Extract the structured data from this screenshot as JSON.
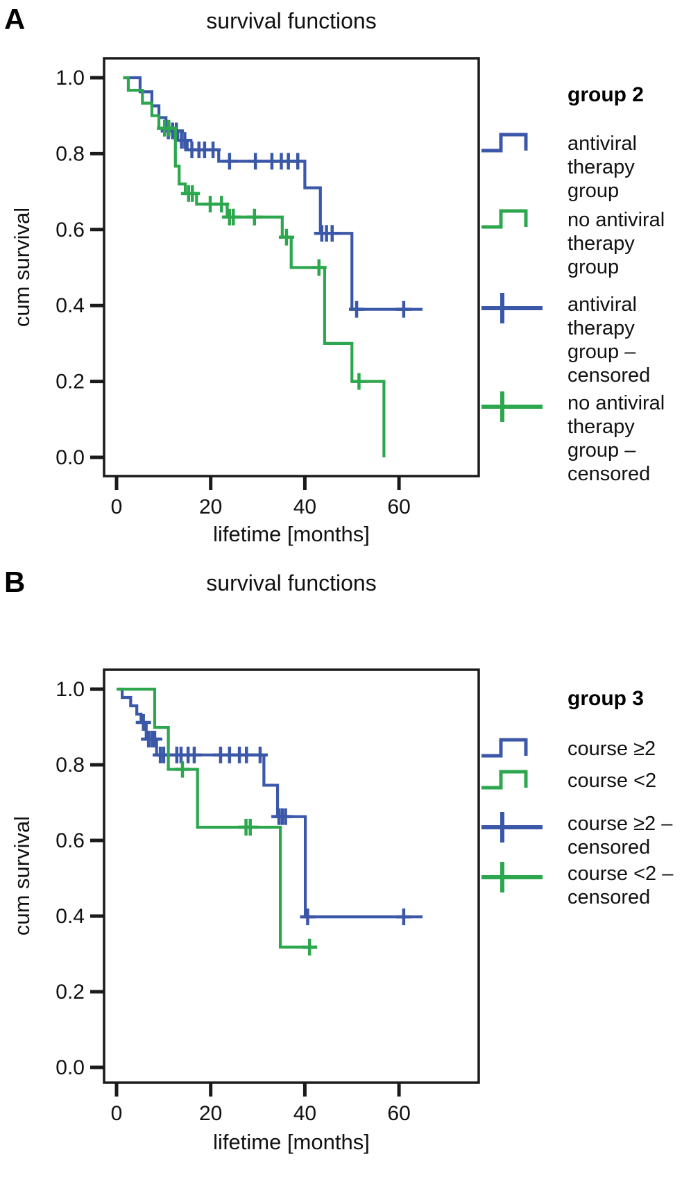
{
  "figure": {
    "background": "#ffffff",
    "text_color": "#111111",
    "axis_color": "#1a1a1a"
  },
  "chart_data": [
    {
      "type": "line",
      "subtype": "kaplan-meier-step",
      "panel_label": "A",
      "title": "survival functions",
      "xlabel": "lifetime [months]",
      "ylabel": "cum survival",
      "xlim": [
        0,
        77
      ],
      "ylim": [
        0,
        1.05
      ],
      "grid": "off",
      "legend_position": "right",
      "legend_title": "group 2",
      "xtick_values": [
        0,
        20,
        40,
        60
      ],
      "xtick_labels": [
        "0",
        "20",
        "40",
        "60"
      ],
      "ytick_values": [
        1.0,
        0.8,
        0.6,
        0.4,
        0.2,
        0.0
      ],
      "ytick_labels": [
        "1.0",
        "0.8",
        "0.6",
        "0.4",
        "0.2",
        "0.0"
      ],
      "series": [
        {
          "name": "antiviral therapy group",
          "censored_name": "antiviral therapy group – censored",
          "color": "#3b57a8",
          "steps": [
            [
              1.4,
              1.0
            ],
            [
              5,
              0.963
            ],
            [
              7.5,
              0.926
            ],
            [
              9,
              0.895
            ],
            [
              10.5,
              0.86
            ],
            [
              13,
              0.835
            ],
            [
              15,
              0.81
            ],
            [
              21.7,
              0.78
            ],
            [
              40,
              0.71
            ],
            [
              43.3,
              0.59
            ],
            [
              50,
              0.39
            ]
          ],
          "end": 65,
          "censored": [
            [
              11,
              0.86
            ],
            [
              11.9,
              0.86
            ],
            [
              12.7,
              0.86
            ],
            [
              13.8,
              0.835
            ],
            [
              14.5,
              0.835
            ],
            [
              16,
              0.81
            ],
            [
              17.5,
              0.81
            ],
            [
              18.7,
              0.81
            ],
            [
              20.5,
              0.81
            ],
            [
              24,
              0.78
            ],
            [
              29.5,
              0.78
            ],
            [
              33,
              0.78
            ],
            [
              35,
              0.78
            ],
            [
              36.5,
              0.78
            ],
            [
              38.5,
              0.78
            ],
            [
              43.6,
              0.59
            ],
            [
              44.6,
              0.59
            ],
            [
              45.8,
              0.59
            ],
            [
              51,
              0.39
            ],
            [
              61,
              0.39
            ]
          ]
        },
        {
          "name": "no antiviral therapy group",
          "censored_name": "no antiviral therapy group – censored",
          "color": "#2da74e",
          "steps": [
            [
              1.4,
              1.0
            ],
            [
              2.5,
              0.967
            ],
            [
              5.5,
              0.933
            ],
            [
              7.5,
              0.9
            ],
            [
              9,
              0.867
            ],
            [
              12.5,
              0.767
            ],
            [
              13.3,
              0.72
            ],
            [
              14.6,
              0.695
            ],
            [
              17,
              0.667
            ],
            [
              23.5,
              0.633
            ],
            [
              35.2,
              0.58
            ],
            [
              37.1,
              0.5
            ],
            [
              44.2,
              0.3
            ],
            [
              50,
              0.2
            ],
            [
              56.8,
              0.0
            ]
          ],
          "end": 56.8,
          "censored": [
            [
              10.2,
              0.867
            ],
            [
              11.1,
              0.867
            ],
            [
              15.3,
              0.695
            ],
            [
              16.1,
              0.695
            ],
            [
              19.9,
              0.667
            ],
            [
              22.3,
              0.667
            ],
            [
              24,
              0.633
            ],
            [
              24.8,
              0.633
            ],
            [
              29.3,
              0.633
            ],
            [
              36.1,
              0.58
            ],
            [
              43,
              0.5
            ],
            [
              51.5,
              0.2
            ]
          ]
        }
      ]
    },
    {
      "type": "line",
      "subtype": "kaplan-meier-step",
      "panel_label": "B",
      "title": "survival functions",
      "xlabel": "lifetime [months]",
      "ylabel": "cum survival",
      "xlim": [
        0,
        77
      ],
      "ylim": [
        0,
        1.05
      ],
      "grid": "off",
      "legend_position": "right",
      "legend_title": "group 3",
      "xtick_values": [
        0,
        20,
        40,
        60
      ],
      "xtick_labels": [
        "0",
        "20",
        "40",
        "60"
      ],
      "ytick_values": [
        1.0,
        0.8,
        0.6,
        0.4,
        0.2,
        0.0
      ],
      "ytick_labels": [
        "1.0",
        "0.8",
        "0.6",
        "0.4",
        "0.2",
        "0.0"
      ],
      "series": [
        {
          "name": "course ≥2",
          "censored_name": "course ≥2 – censored",
          "color": "#3b57a8",
          "steps": [
            [
              0.4,
              1.0
            ],
            [
              1.2,
              0.978
            ],
            [
              3,
              0.956
            ],
            [
              4.3,
              0.934
            ],
            [
              5.2,
              0.912
            ],
            [
              6.3,
              0.868
            ],
            [
              8.5,
              0.826
            ],
            [
              31.3,
              0.746
            ],
            [
              34.2,
              0.663
            ],
            [
              40.1,
              0.398
            ]
          ],
          "end": 65,
          "censored": [
            [
              5.7,
              0.912
            ],
            [
              6.8,
              0.868
            ],
            [
              7.5,
              0.868
            ],
            [
              8.1,
              0.868
            ],
            [
              9.3,
              0.826
            ],
            [
              10,
              0.826
            ],
            [
              12.8,
              0.826
            ],
            [
              13.7,
              0.826
            ],
            [
              15.2,
              0.826
            ],
            [
              16.5,
              0.826
            ],
            [
              22.1,
              0.826
            ],
            [
              24,
              0.826
            ],
            [
              26.1,
              0.826
            ],
            [
              27.6,
              0.826
            ],
            [
              30.5,
              0.826
            ],
            [
              34.5,
              0.663
            ],
            [
              35.2,
              0.663
            ],
            [
              35.9,
              0.663
            ],
            [
              40.6,
              0.398
            ],
            [
              61,
              0.398
            ]
          ]
        },
        {
          "name": "course <2",
          "censored_name": "course <2 – censored",
          "color": "#2da74e",
          "steps": [
            [
              0,
              1.0
            ],
            [
              8.1,
              0.899
            ],
            [
              11,
              0.788
            ],
            [
              17.2,
              0.635
            ],
            [
              34.8,
              0.318
            ]
          ],
          "end": 42,
          "censored": [
            [
              14,
              0.788
            ],
            [
              27.5,
              0.635
            ],
            [
              28.4,
              0.635
            ],
            [
              41,
              0.318
            ]
          ]
        }
      ]
    }
  ]
}
